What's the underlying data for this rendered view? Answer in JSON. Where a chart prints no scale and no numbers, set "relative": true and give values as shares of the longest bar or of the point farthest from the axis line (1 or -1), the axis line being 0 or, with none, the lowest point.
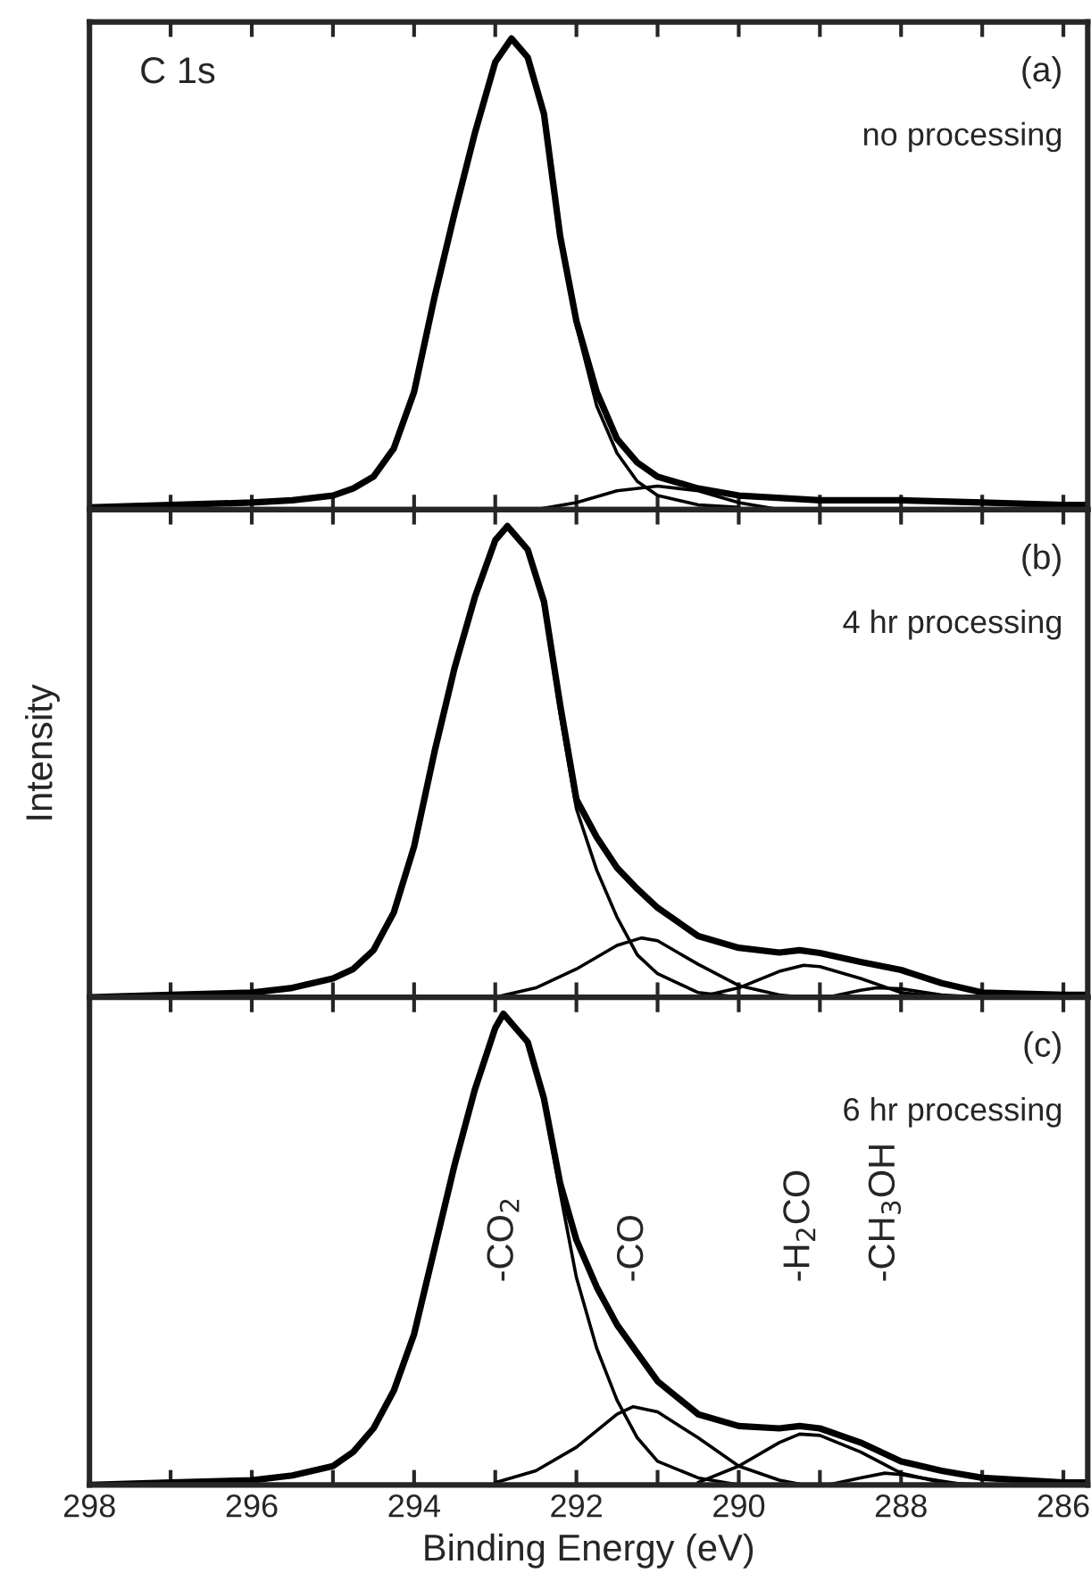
{
  "chart_data": [
    {
      "type": "line",
      "title": "C 1s",
      "relative": true,
      "tick_labels": false,
      "xlim": [
        298,
        285.7
      ],
      "xticks": [
        {
          "value": 298,
          "label": null
        },
        {
          "value": 297,
          "label": null
        },
        {
          "value": 296,
          "label": null
        },
        {
          "value": 295,
          "label": null
        },
        {
          "value": 294,
          "label": null
        },
        {
          "value": 293,
          "label": null
        },
        {
          "value": 292,
          "label": null
        },
        {
          "value": 291,
          "label": null
        },
        {
          "value": 290,
          "label": null
        },
        {
          "value": 289,
          "label": null
        },
        {
          "value": 288,
          "label": null
        },
        {
          "value": 287,
          "label": null
        },
        {
          "value": 286,
          "label": null
        }
      ],
      "annotations": [
        "(a)",
        "no processing"
      ],
      "series": [
        {
          "color": "#000000",
          "x": [
            298,
            297,
            296,
            295.5,
            295,
            294.75,
            294.5,
            294.25,
            294,
            293.75,
            293.5,
            293.25,
            293,
            292.8,
            292.6,
            292.4,
            292.2,
            292,
            291.75,
            291.5,
            291.25,
            291,
            290.5,
            290,
            289,
            288,
            287,
            286,
            285.7
          ],
          "values": [
            0.005,
            0.01,
            0.015,
            0.02,
            0.03,
            0.045,
            0.07,
            0.13,
            0.25,
            0.45,
            0.63,
            0.8,
            0.95,
            1.0,
            0.96,
            0.84,
            0.58,
            0.4,
            0.25,
            0.15,
            0.1,
            0.07,
            0.045,
            0.03,
            0.02,
            0.02,
            0.015,
            0.01,
            0.01
          ]
        },
        {
          "color": "#000000",
          "x": [
            298,
            297,
            296,
            295.5,
            295,
            294.75,
            294.5,
            294.25,
            294,
            293.75,
            293.5,
            293.25,
            293,
            292.8,
            292.6,
            292.4,
            292.2,
            292,
            291.75,
            291.5,
            291.25,
            291,
            290.5,
            290
          ],
          "values": [
            0.005,
            0.01,
            0.015,
            0.02,
            0.03,
            0.045,
            0.07,
            0.13,
            0.25,
            0.45,
            0.63,
            0.8,
            0.95,
            1.0,
            0.96,
            0.84,
            0.58,
            0.39,
            0.22,
            0.12,
            0.06,
            0.03,
            0.01,
            0.005
          ]
        },
        {
          "color": "#000000",
          "x": [
            292.5,
            292,
            291.5,
            291,
            290.5,
            290,
            289.5
          ],
          "values": [
            0.0,
            0.015,
            0.04,
            0.05,
            0.04,
            0.015,
            0.0
          ]
        }
      ]
    },
    {
      "type": "line",
      "ylabel": "Intensity",
      "relative": true,
      "tick_labels": false,
      "xlim": [
        298,
        285.7
      ],
      "xticks": [
        {
          "value": 298,
          "label": null
        },
        {
          "value": 297,
          "label": null
        },
        {
          "value": 296,
          "label": null
        },
        {
          "value": 295,
          "label": null
        },
        {
          "value": 294,
          "label": null
        },
        {
          "value": 293,
          "label": null
        },
        {
          "value": 292,
          "label": null
        },
        {
          "value": 291,
          "label": null
        },
        {
          "value": 290,
          "label": null
        },
        {
          "value": 289,
          "label": null
        },
        {
          "value": 288,
          "label": null
        },
        {
          "value": 287,
          "label": null
        },
        {
          "value": 286,
          "label": null
        }
      ],
      "annotations": [
        "(b)",
        "4 hr processing"
      ],
      "series": [
        {
          "color": "#000000",
          "x": [
            298,
            297,
            296,
            295.5,
            295,
            294.75,
            294.5,
            294.25,
            294,
            293.75,
            293.5,
            293.25,
            293,
            292.85,
            292.6,
            292.4,
            292.2,
            292,
            291.75,
            291.5,
            291.25,
            291,
            290.5,
            290,
            289.5,
            289.25,
            289,
            288.5,
            288,
            287.5,
            287,
            286,
            285.7
          ],
          "values": [
            0.0,
            0.005,
            0.01,
            0.02,
            0.04,
            0.06,
            0.1,
            0.18,
            0.32,
            0.52,
            0.7,
            0.85,
            0.97,
            1.0,
            0.95,
            0.84,
            0.62,
            0.42,
            0.34,
            0.275,
            0.23,
            0.19,
            0.13,
            0.105,
            0.095,
            0.1,
            0.094,
            0.075,
            0.058,
            0.03,
            0.01,
            0.005,
            0.005
          ]
        },
        {
          "color": "#000000",
          "x": [
            298,
            297,
            296,
            295.5,
            295,
            294.75,
            294.5,
            294.25,
            294,
            293.75,
            293.5,
            293.25,
            293,
            292.85,
            292.6,
            292.4,
            292.2,
            292,
            291.75,
            291.5,
            291.25,
            291,
            290.5,
            290
          ],
          "values": [
            0.0,
            0.005,
            0.01,
            0.02,
            0.04,
            0.06,
            0.1,
            0.18,
            0.32,
            0.52,
            0.7,
            0.85,
            0.97,
            1.0,
            0.95,
            0.83,
            0.6,
            0.4,
            0.27,
            0.17,
            0.09,
            0.05,
            0.01,
            0.0
          ]
        },
        {
          "color": "#000000",
          "x": [
            293,
            292.5,
            292,
            291.5,
            291.2,
            291,
            290.5,
            290,
            289.5,
            289.2
          ],
          "values": [
            0.0,
            0.02,
            0.06,
            0.11,
            0.126,
            0.12,
            0.07,
            0.025,
            0.005,
            0.0
          ]
        },
        {
          "color": "#000000",
          "x": [
            290.5,
            290,
            289.5,
            289.2,
            289,
            288.5,
            288,
            287.5
          ],
          "values": [
            0.0,
            0.02,
            0.055,
            0.068,
            0.065,
            0.04,
            0.01,
            0.0
          ]
        },
        {
          "color": "#000000",
          "x": [
            288.9,
            288.5,
            288.3,
            288,
            287.5,
            287
          ],
          "values": [
            0.0,
            0.015,
            0.02,
            0.018,
            0.005,
            0.0
          ]
        }
      ]
    },
    {
      "type": "line",
      "xlabel": "Binding Energy (eV)",
      "relative": true,
      "tick_labels": "x",
      "xlim": [
        298,
        285.7
      ],
      "xticks": [
        298,
        {
          "value": 297,
          "label": null
        },
        296,
        {
          "value": 295,
          "label": null
        },
        294,
        {
          "value": 293,
          "label": null
        },
        292,
        {
          "value": 291,
          "label": null
        },
        290,
        {
          "value": 289,
          "label": null
        },
        288,
        {
          "value": 287,
          "label": null
        },
        286
      ],
      "annotations": [
        "(c)",
        "6 hr processing",
        "-CO$_{2}$",
        "-CO",
        "-H$_{2}$CO",
        "-CH$_{3}$OH"
      ],
      "series": [
        {
          "color": "#000000",
          "x": [
            298,
            297,
            296,
            295.5,
            295,
            294.75,
            294.5,
            294.25,
            294,
            293.75,
            293.5,
            293.25,
            293,
            292.9,
            292.6,
            292.4,
            292.2,
            292,
            291.75,
            291.5,
            291.25,
            291,
            290.5,
            290,
            289.5,
            289.25,
            289,
            288.5,
            288,
            287.5,
            287,
            286,
            285.7
          ],
          "values": [
            0.0,
            0.005,
            0.01,
            0.02,
            0.04,
            0.07,
            0.12,
            0.2,
            0.32,
            0.5,
            0.68,
            0.84,
            0.97,
            1.0,
            0.94,
            0.82,
            0.64,
            0.52,
            0.42,
            0.34,
            0.28,
            0.22,
            0.15,
            0.125,
            0.12,
            0.125,
            0.12,
            0.09,
            0.05,
            0.03,
            0.015,
            0.005,
            0.005
          ]
        },
        {
          "color": "#000000",
          "x": [
            298,
            297,
            296,
            295.5,
            295,
            294.75,
            294.5,
            294.25,
            294,
            293.75,
            293.5,
            293.25,
            293,
            292.9,
            292.6,
            292.4,
            292.2,
            292,
            291.75,
            291.5,
            291.25,
            291,
            290.5,
            290
          ],
          "values": [
            0.0,
            0.005,
            0.01,
            0.02,
            0.04,
            0.07,
            0.12,
            0.2,
            0.32,
            0.5,
            0.68,
            0.84,
            0.97,
            1.0,
            0.94,
            0.81,
            0.62,
            0.44,
            0.29,
            0.18,
            0.1,
            0.05,
            0.015,
            0.0
          ]
        },
        {
          "color": "#000000",
          "x": [
            293,
            292.5,
            292,
            291.5,
            291.3,
            291,
            290.5,
            290,
            289.5,
            289.2
          ],
          "values": [
            0.005,
            0.03,
            0.08,
            0.15,
            0.166,
            0.155,
            0.1,
            0.04,
            0.01,
            0.0
          ]
        },
        {
          "color": "#000000",
          "x": [
            290.5,
            290,
            289.5,
            289.25,
            289,
            288.5,
            288,
            287.5,
            287
          ],
          "values": [
            0.005,
            0.04,
            0.09,
            0.108,
            0.105,
            0.07,
            0.025,
            0.005,
            0.0
          ]
        },
        {
          "color": "#000000",
          "x": [
            288.9,
            288.5,
            288.2,
            288,
            287.5,
            287.2
          ],
          "values": [
            0.0,
            0.015,
            0.025,
            0.022,
            0.008,
            0.0
          ]
        }
      ]
    }
  ]
}
